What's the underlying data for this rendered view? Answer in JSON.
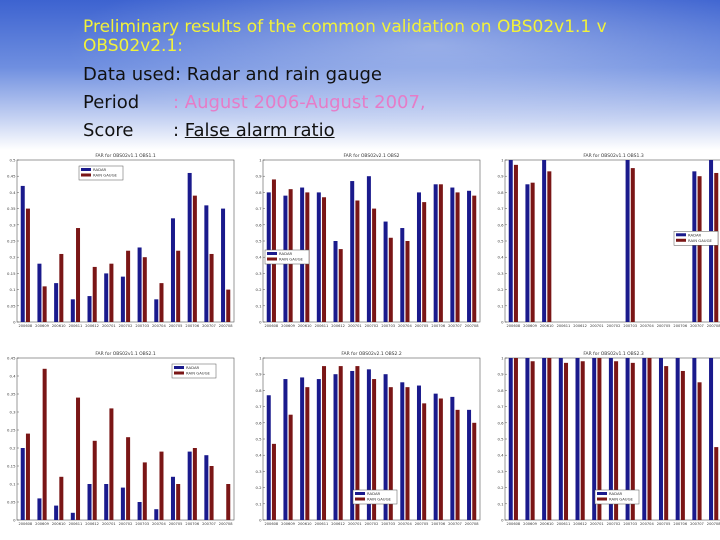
{
  "slide": {
    "title": "Preliminary results of the common validation on OBS02v1.1 v OBS02v2.1:",
    "data_label": "Data used: Radar and rain gauge",
    "period_label": "Period",
    "period_value": ": August 2006-August 2007,",
    "score_label": "Score",
    "score_sep": ": ",
    "score_value": "False alarm ratio"
  },
  "colors": {
    "radar": "#1a1a8c",
    "gauge": "#7a1616",
    "title": "#f2f23a",
    "period": "#e67cc7"
  },
  "chart_data": [
    {
      "type": "bar",
      "title": "FAR for OBS02v1.1 OBS1.1",
      "categories": [
        "200608",
        "200609",
        "200610",
        "200611",
        "200612",
        "200701",
        "200702",
        "200703",
        "200704",
        "200705",
        "200706",
        "200707",
        "200708"
      ],
      "series": [
        {
          "name": "RADAR",
          "values": [
            0.42,
            0.18,
            0.12,
            0.07,
            0.08,
            0.15,
            0.14,
            0.23,
            0.07,
            0.32,
            0.46,
            0.36,
            0.35
          ]
        },
        {
          "name": "RAIN GAUGE",
          "values": [
            0.35,
            0.11,
            0.21,
            0.29,
            0.17,
            0.18,
            0.22,
            0.2,
            0.12,
            0.22,
            0.39,
            0.21,
            0.1
          ]
        }
      ],
      "ylim": [
        0,
        0.5
      ],
      "yticks": [
        "0",
        "0.05",
        "0.1",
        "0.15",
        "0.2",
        "0.25",
        "0.3",
        "0.35",
        "0.4",
        "0.45",
        "0.5"
      ]
    },
    {
      "type": "bar",
      "title": "FAR for OBS02v2.1 OBS2",
      "categories": [
        "200608",
        "200609",
        "200610",
        "200611",
        "200612",
        "200701",
        "200702",
        "200703",
        "200704",
        "200705",
        "200706",
        "200707",
        "200708"
      ],
      "series": [
        {
          "name": "RADAR",
          "values": [
            0.8,
            0.78,
            0.83,
            0.8,
            0.5,
            0.87,
            0.9,
            0.62,
            0.58,
            0.8,
            0.85,
            0.83,
            0.81
          ]
        },
        {
          "name": "RAIN GAUGE",
          "values": [
            0.88,
            0.82,
            0.8,
            0.77,
            0.45,
            0.75,
            0.7,
            0.52,
            0.5,
            0.74,
            0.85,
            0.8,
            0.78
          ]
        }
      ],
      "ylim": [
        0,
        1
      ],
      "yticks": [
        "0",
        "0.1",
        "0.2",
        "0.3",
        "0.4",
        "0.5",
        "0.6",
        "0.7",
        "0.8",
        "0.9",
        "1"
      ]
    },
    {
      "type": "bar",
      "title": "FAR for OBS02v1.1 OBS1.3",
      "categories": [
        "200608",
        "200609",
        "200610",
        "200611",
        "200612",
        "200701",
        "200702",
        "200703",
        "200704",
        "200705",
        "200706",
        "200707",
        "200708"
      ],
      "series": [
        {
          "name": "RADAR",
          "values": [
            1,
            0.85,
            1,
            0,
            0,
            0,
            0,
            1,
            0,
            0,
            0,
            0.93,
            1
          ]
        },
        {
          "name": "RAIN GAUGE",
          "values": [
            0.97,
            0.86,
            0.93,
            0,
            0,
            0,
            0,
            0.95,
            0,
            0,
            0,
            0.9,
            0.92
          ]
        }
      ],
      "ylim": [
        0,
        1
      ],
      "yticks": [
        "0",
        "0.1",
        "0.2",
        "0.3",
        "0.4",
        "0.5",
        "0.6",
        "0.7",
        "0.8",
        "0.9",
        "1"
      ]
    },
    {
      "type": "bar",
      "title": "FAR for OBS02v1.1 OBS2.1",
      "categories": [
        "200608",
        "200609",
        "200610",
        "200611",
        "200612",
        "200701",
        "200702",
        "200703",
        "200704",
        "200705",
        "200706",
        "200707",
        "200708"
      ],
      "series": [
        {
          "name": "RADAR",
          "values": [
            0.2,
            0.06,
            0.04,
            0.02,
            0.1,
            0.1,
            0.09,
            0.05,
            0.03,
            0.12,
            0.19,
            0.18,
            0.0
          ]
        },
        {
          "name": "RAIN GAUGE",
          "values": [
            0.24,
            0.42,
            0.12,
            0.34,
            0.22,
            0.31,
            0.23,
            0.16,
            0.19,
            0.1,
            0.2,
            0.15,
            0.1
          ]
        }
      ],
      "ylim": [
        0,
        0.45
      ],
      "yticks": [
        "0",
        "0.05",
        "0.1",
        "0.15",
        "0.2",
        "0.25",
        "0.3",
        "0.35",
        "0.4",
        "0.45"
      ]
    },
    {
      "type": "bar",
      "title": "FAR for OBS02v2.1 OBS2.2",
      "categories": [
        "200608",
        "200609",
        "200610",
        "200611",
        "200612",
        "200701",
        "200702",
        "200703",
        "200704",
        "200705",
        "200706",
        "200707",
        "200708"
      ],
      "series": [
        {
          "name": "RADAR",
          "values": [
            0.77,
            0.87,
            0.88,
            0.87,
            0.9,
            0.92,
            0.93,
            0.9,
            0.85,
            0.83,
            0.78,
            0.76,
            0.68
          ]
        },
        {
          "name": "RAIN GAUGE",
          "values": [
            0.47,
            0.65,
            0.82,
            0.95,
            0.95,
            0.95,
            0.87,
            0.82,
            0.82,
            0.72,
            0.75,
            0.68,
            0.6
          ]
        }
      ],
      "ylim": [
        0,
        1
      ],
      "yticks": [
        "0",
        "0.1",
        "0.2",
        "0.3",
        "0.4",
        "0.5",
        "0.6",
        "0.7",
        "0.8",
        "0.9",
        "1"
      ]
    },
    {
      "type": "bar",
      "title": "FAR for OBS02v1.1 OBS2.3",
      "categories": [
        "200608",
        "200609",
        "200610",
        "200611",
        "200612",
        "200701",
        "200702",
        "200703",
        "200704",
        "200705",
        "200706",
        "200707",
        "200708"
      ],
      "series": [
        {
          "name": "RADAR",
          "values": [
            1,
            1,
            1,
            1,
            1,
            1,
            1,
            1,
            1,
            1,
            1,
            1,
            1
          ]
        },
        {
          "name": "RAIN GAUGE",
          "values": [
            1,
            0.98,
            1,
            0.97,
            0.98,
            1,
            0.98,
            0.97,
            1,
            0.95,
            0.92,
            0.85,
            0.45
          ]
        }
      ],
      "ylim": [
        0,
        1
      ],
      "yticks": [
        "0",
        "0.1",
        "0.2",
        "0.3",
        "0.4",
        "0.5",
        "0.6",
        "0.7",
        "0.8",
        "0.9",
        "1"
      ]
    }
  ]
}
